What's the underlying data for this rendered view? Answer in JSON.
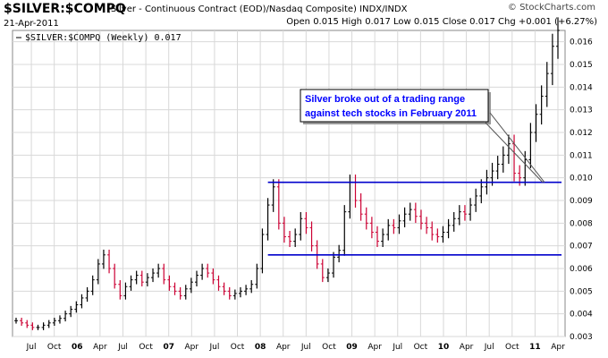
{
  "header": {
    "symbol": "$SILVER:$COMPQ",
    "description": "(Silver - Continuous Contract (EOD)/Nasdaq Composite)  INDX/INDX",
    "date": "21-Apr-2011",
    "watermark": "© StockCharts.com",
    "open_label": "Open",
    "open": "0.015",
    "high_label": "High",
    "high": "0.017",
    "low_label": "Low",
    "low": "0.015",
    "close_label": "Close",
    "close": "0.017",
    "chg_label": "Chg",
    "chg": "+0.001 (+6.27%)"
  },
  "legend": "$SILVER:$COMPQ (Weekly) 0.017",
  "annotation": {
    "line1": "Silver broke out of a trading range",
    "line2": "against tech stocks in February 2011"
  },
  "colors": {
    "up_bar": "#000000",
    "down_bar": "#cc0033",
    "range_line": "#0000cc",
    "annotation_text": "#0000ff",
    "grid": "#d8d8d8"
  },
  "chart_data": {
    "type": "bar",
    "style": "ohlc",
    "ylim": [
      0.003,
      0.0165
    ],
    "y_ticks": [
      "0.003",
      "0.004",
      "0.005",
      "0.006",
      "0.007",
      "0.008",
      "0.009",
      "0.010",
      "0.011",
      "0.012",
      "0.013",
      "0.014",
      "0.015",
      "0.016"
    ],
    "x_ticks": [
      "Jul",
      "Oct",
      "06",
      "Apr",
      "Jul",
      "Oct",
      "07",
      "Apr",
      "Jul",
      "Oct",
      "08",
      "Apr",
      "Jul",
      "Oct",
      "09",
      "Apr",
      "Jul",
      "Oct",
      "10",
      "Apr",
      "Jul",
      "Oct",
      "11",
      "Apr"
    ],
    "x_range": [
      "2005-05",
      "2011-04"
    ],
    "grid": true,
    "horizontal_lines": [
      {
        "y": 0.0098,
        "from": "2008-02",
        "to": "2011-04"
      },
      {
        "y": 0.0066,
        "from": "2008-02",
        "to": "2011-04"
      }
    ],
    "series": [
      {
        "close": [
          0.0037,
          0.0036,
          0.0035,
          0.0034,
          0.0034,
          0.0035,
          0.0036,
          0.0037,
          0.0038,
          0.004,
          0.0042,
          0.0044,
          0.0047,
          0.005,
          0.0055,
          0.0062,
          0.0066,
          0.006,
          0.0053,
          0.0048,
          0.0052,
          0.0055,
          0.0057,
          0.0054,
          0.0056,
          0.0058,
          0.006,
          0.0055,
          0.0052,
          0.005,
          0.0048,
          0.0051,
          0.0054,
          0.0057,
          0.006,
          0.0058,
          0.0055,
          0.0052,
          0.005,
          0.0048,
          0.0049,
          0.005,
          0.0051,
          0.0053,
          0.006,
          0.0075,
          0.0088,
          0.0096,
          0.008,
          0.0074,
          0.0072,
          0.0075,
          0.0082,
          0.0078,
          0.007,
          0.0062,
          0.0056,
          0.0058,
          0.0065,
          0.0068,
          0.0085,
          0.0098,
          0.009,
          0.0084,
          0.008,
          0.0076,
          0.0072,
          0.0075,
          0.0079,
          0.0078,
          0.0081,
          0.0084,
          0.0086,
          0.0083,
          0.008,
          0.0078,
          0.0075,
          0.0074,
          0.0076,
          0.0079,
          0.0082,
          0.0085,
          0.0084,
          0.0088,
          0.0092,
          0.0096,
          0.01,
          0.0103,
          0.0106,
          0.011,
          0.0115,
          0.0102,
          0.01,
          0.0108,
          0.012,
          0.0128,
          0.0136,
          0.0146,
          0.0158,
          0.0165
        ]
      }
    ]
  }
}
